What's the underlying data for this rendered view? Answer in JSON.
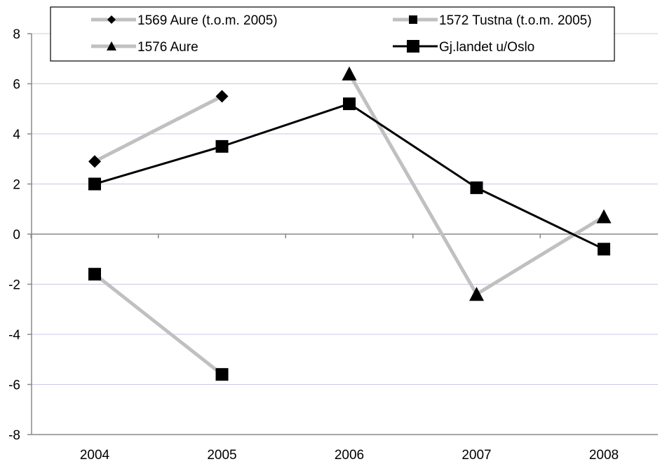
{
  "chart_data": {
    "type": "line",
    "title": "",
    "xlabel": "",
    "ylabel": "",
    "categories": [
      "2004",
      "2005",
      "2006",
      "2007",
      "2008"
    ],
    "ylim": [
      -8,
      8
    ],
    "yticks": [
      -8,
      -6,
      -4,
      -2,
      0,
      2,
      4,
      6,
      8
    ],
    "grid": "horizontal",
    "legend_position": "top",
    "series": [
      {
        "name": "1569 Aure (t.o.m. 2005)",
        "values": [
          2.9,
          5.5,
          null,
          null,
          null
        ],
        "color": "#c0c0c0",
        "marker": "diamond"
      },
      {
        "name": "1572 Tustna (t.o.m. 2005)",
        "values": [
          -1.6,
          -5.6,
          null,
          null,
          null
        ],
        "color": "#c0c0c0",
        "marker": "square"
      },
      {
        "name": "1576 Aure",
        "values": [
          null,
          null,
          6.4,
          -2.4,
          0.7
        ],
        "color": "#c0c0c0",
        "marker": "triangle"
      },
      {
        "name": "Gj.landet u/Oslo",
        "values": [
          2.0,
          3.5,
          5.2,
          1.85,
          -0.6
        ],
        "color": "#000000",
        "marker": "square"
      }
    ]
  }
}
